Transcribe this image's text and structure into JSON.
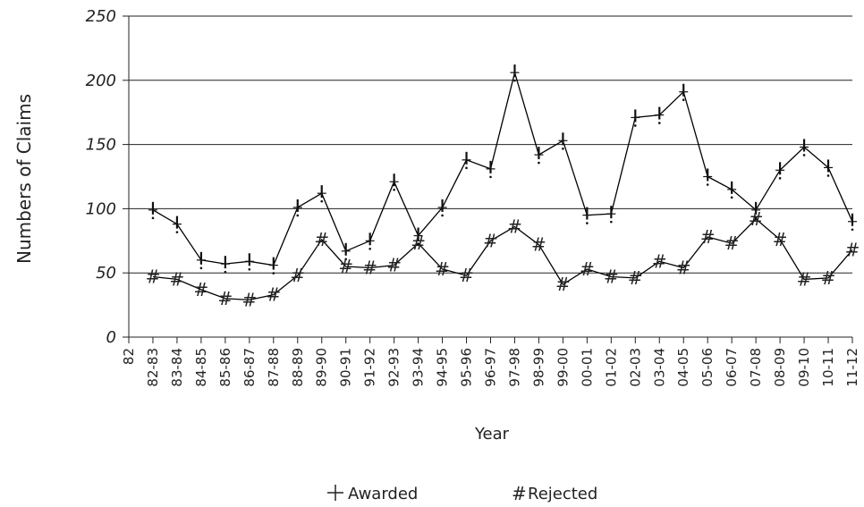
{
  "chart_data": {
    "type": "line",
    "title": "",
    "xlabel": "Year",
    "ylabel": "Numbers of Claims",
    "ylim": [
      0,
      250
    ],
    "yticks": [
      0,
      50,
      100,
      150,
      200,
      250
    ],
    "grid": "horizontal",
    "legend": "bottom-center",
    "categories": [
      "82",
      "82-83",
      "83-84",
      "84-85",
      "85-86",
      "86-87",
      "87-88",
      "88-89",
      "89-90",
      "90-91",
      "91-92",
      "92-93",
      "93-94",
      "94-95",
      "95-96",
      "96-97",
      "97-98",
      "98-99",
      "99-00",
      "00-01",
      "01-02",
      "02-03",
      "03-04",
      "04-05",
      "05-06",
      "06-07",
      "07-08",
      "08-09",
      "09-10",
      "10-11",
      "11-12"
    ],
    "series": [
      {
        "name": "Awarded",
        "marker": "+",
        "color": "#000000",
        "values": [
          null,
          99,
          88,
          60,
          57,
          59,
          56,
          101,
          112,
          67,
          75,
          121,
          79,
          101,
          138,
          131,
          206,
          142,
          153,
          95,
          96,
          171,
          173,
          191,
          125,
          115,
          99,
          130,
          148,
          132,
          90
        ]
      },
      {
        "name": "Rejected",
        "marker": "#",
        "color": "#000000",
        "values": [
          null,
          47,
          45,
          37,
          30,
          29,
          33,
          48,
          76,
          55,
          54,
          56,
          73,
          53,
          48,
          75,
          86,
          72,
          41,
          53,
          47,
          46,
          59,
          54,
          78,
          73,
          92,
          76,
          45,
          46,
          68
        ]
      }
    ]
  }
}
